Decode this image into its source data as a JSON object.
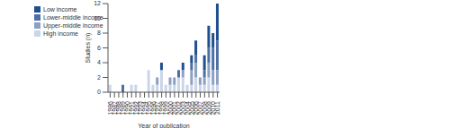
{
  "chart_data": {
    "type": "bar",
    "stacked": true,
    "grid": false,
    "legend": "upper left",
    "x_label": "Year of publication",
    "y_label": "Studies (n)",
    "categories": [
      "1986",
      "1987",
      "1988",
      "1989",
      "1990",
      "1991",
      "1992",
      "1993",
      "1994",
      "1995",
      "1996",
      "1997",
      "1998",
      "1999",
      "2000",
      "2001",
      "2002",
      "2003",
      "2004",
      "2005",
      "2006",
      "2007",
      "2008",
      "2009",
      "2010",
      "2011"
    ],
    "series": [
      {
        "name": "Low income",
        "color": "#1f4f8f",
        "values": [
          0,
          0,
          0,
          0,
          0,
          0,
          0,
          0,
          0,
          0,
          0,
          0,
          1,
          0,
          0,
          0,
          0,
          1,
          0,
          1,
          2,
          0,
          2,
          3,
          2,
          5
        ]
      },
      {
        "name": "Lower-middle income",
        "color": "#4c6fa6",
        "values": [
          0,
          0,
          0,
          1,
          0,
          0,
          0,
          0,
          0,
          0,
          0,
          0,
          0,
          0,
          0,
          0,
          1,
          0,
          0,
          1,
          1,
          0,
          1,
          2,
          3,
          4
        ]
      },
      {
        "name": "Upper-middle income",
        "color": "#8d9fc3",
        "values": [
          0,
          0,
          0,
          0,
          0,
          0,
          0,
          0,
          0,
          0,
          0,
          1,
          0,
          0,
          1,
          1,
          0,
          1,
          0,
          2,
          2,
          1,
          1,
          2,
          2,
          2
        ]
      },
      {
        "name": "High income",
        "color": "#cbd5e8",
        "values": [
          1,
          0,
          0,
          0,
          0,
          1,
          1,
          0,
          0,
          3,
          1,
          1,
          3,
          1,
          1,
          1,
          2,
          2,
          1,
          1,
          2,
          1,
          1,
          2,
          1,
          1
        ]
      }
    ],
    "ylim": [
      0,
      12
    ],
    "yticks": [
      0,
      2,
      4,
      6,
      8,
      10,
      12
    ]
  }
}
